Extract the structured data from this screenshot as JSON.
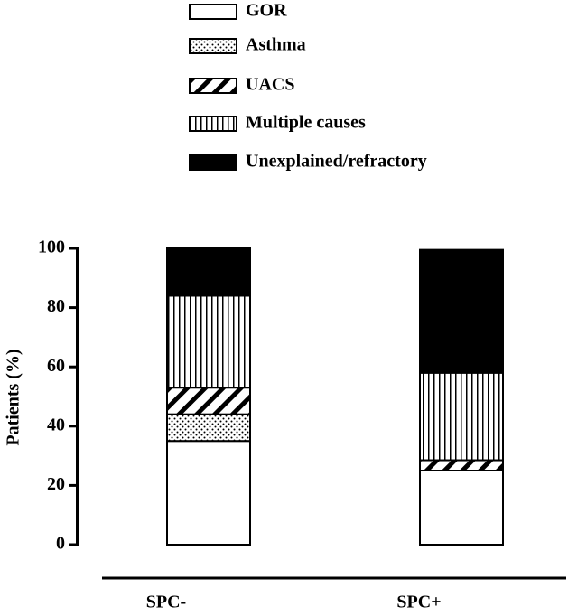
{
  "chart_data": {
    "type": "stacked_bar",
    "y_label": "Patients (%)",
    "categories": [
      "SPC-",
      "SPC+"
    ],
    "series": [
      {
        "name": "GOR",
        "color": "#ffffff",
        "pattern": "solid",
        "values": [
          35,
          25
        ]
      },
      {
        "name": "Asthma",
        "color": "#ffffff",
        "pattern": "dots",
        "values": [
          9,
          0
        ]
      },
      {
        "name": "UACS",
        "color": "#ffffff",
        "pattern": "diagonal",
        "values": [
          9,
          3.5
        ]
      },
      {
        "name": "Multiple causes",
        "color": "#ffffff",
        "pattern": "vertical",
        "values": [
          31,
          29.5
        ]
      },
      {
        "name": "Unexplained/refractory",
        "color": "#000000",
        "pattern": "solid",
        "values": [
          16,
          41.5
        ]
      }
    ],
    "ylim": [
      0,
      100
    ],
    "yticks": [
      0,
      20,
      40,
      60,
      80,
      100
    ],
    "grid": false
  }
}
